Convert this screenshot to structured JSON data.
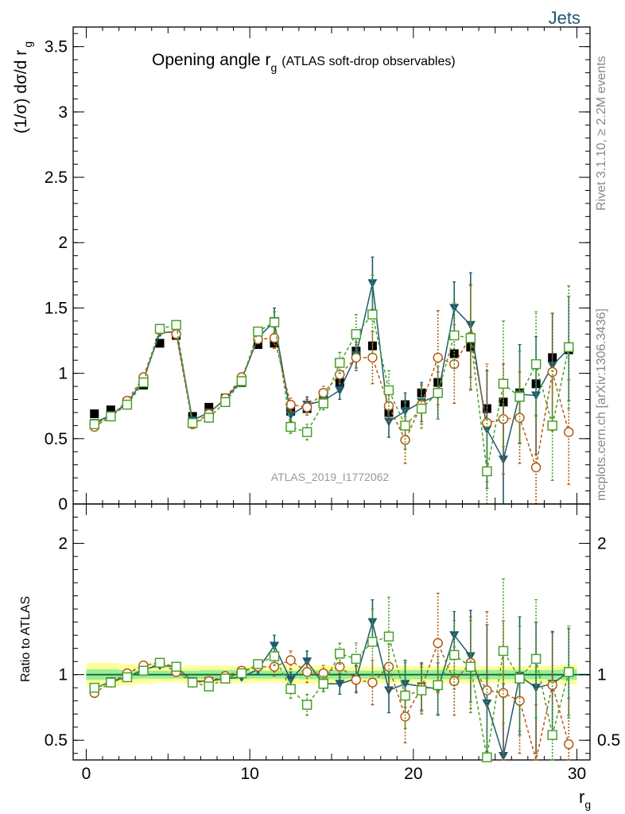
{
  "header": {
    "category": "Jets",
    "rivet_label": "Rivet 3.1.10, ≥ 2.2M events",
    "mcplots_label": "mcplots.cern.ch [arXiv:1306.3436]"
  },
  "colors": {
    "data": "#000000",
    "series_teal": "#1f5a70",
    "series_orange": "#b55a10",
    "series_green": "#4aa02a",
    "band_inner": "#99ee99",
    "band_outer": "#ffff99"
  },
  "chart_data": [
    {
      "type": "scatter",
      "title": "Opening angle r",
      "title_sub": "g",
      "title_suffix": "(ATLAS soft-drop observables)",
      "watermark": "ATLAS_2019_I1772062",
      "ylabel": "(1/σ) dσ/d r",
      "ylabel_sub": "g",
      "xlim": [
        -0.8,
        30.8
      ],
      "ylim": [
        0,
        3.65
      ],
      "yticks": [
        0,
        0.5,
        1,
        1.5,
        2,
        2.5,
        3,
        3.5
      ],
      "ytick_labels": [
        "0",
        "0.5",
        "1",
        "1.5",
        "2",
        "2.5",
        "3",
        "3.5"
      ],
      "x": [
        0.5,
        1.5,
        2.5,
        3.5,
        4.5,
        5.5,
        6.5,
        7.5,
        8.5,
        9.5,
        10.5,
        11.5,
        12.5,
        13.5,
        14.5,
        15.5,
        16.5,
        17.5,
        18.5,
        19.5,
        20.5,
        21.5,
        22.5,
        23.5,
        24.5,
        25.5,
        26.5,
        27.5,
        28.5,
        29.5
      ],
      "series": [
        {
          "name": "",
          "style": "data",
          "values": [
            0.69,
            0.72,
            0.78,
            0.91,
            1.23,
            1.29,
            0.67,
            0.74,
            0.81,
            0.93,
            1.22,
            1.23,
            0.71,
            0.73,
            0.84,
            0.93,
            1.17,
            1.21,
            0.7,
            0.76,
            0.85,
            0.93,
            1.15,
            1.2,
            0.73,
            0.78,
            0.85,
            0.92,
            1.12,
            1.18
          ]
        },
        {
          "name": "",
          "style": "teal",
          "values": [
            0.62,
            0.68,
            0.77,
            0.95,
            1.31,
            1.32,
            0.64,
            0.7,
            0.8,
            0.95,
            1.27,
            1.4,
            0.68,
            0.76,
            0.79,
            0.87,
            1.14,
            1.69,
            0.63,
            0.71,
            0.78,
            0.83,
            1.5,
            1.37,
            0.57,
            0.34,
            0.84,
            0.83,
            1.06,
            1.19
          ],
          "errors": [
            0.01,
            0.01,
            0.01,
            0.01,
            0.02,
            0.02,
            0.01,
            0.01,
            0.01,
            0.02,
            0.03,
            0.1,
            0.05,
            0.06,
            0.05,
            0.07,
            0.1,
            0.2,
            0.12,
            0.14,
            0.15,
            0.18,
            0.2,
            0.4,
            0.45,
            0.42,
            0.38,
            0.45,
            0.4,
            0.4
          ]
        },
        {
          "name": "",
          "style": "orange",
          "values": [
            0.59,
            0.67,
            0.79,
            0.97,
            1.33,
            1.3,
            0.61,
            0.69,
            0.81,
            0.97,
            1.26,
            1.27,
            0.76,
            0.74,
            0.85,
            0.99,
            1.12,
            1.12,
            0.75,
            0.49,
            0.76,
            1.12,
            1.07,
            1.28,
            0.62,
            0.65,
            0.66,
            0.28,
            1.01,
            0.55
          ],
          "errors": [
            0.01,
            0.01,
            0.01,
            0.02,
            0.02,
            0.02,
            0.01,
            0.01,
            0.01,
            0.02,
            0.03,
            0.08,
            0.05,
            0.06,
            0.05,
            0.07,
            0.1,
            0.2,
            0.12,
            0.18,
            0.15,
            0.36,
            0.3,
            0.4,
            0.45,
            0.42,
            0.35,
            0.4,
            0.45,
            0.4
          ]
        },
        {
          "name": "",
          "style": "green",
          "values": [
            0.61,
            0.67,
            0.76,
            0.93,
            1.34,
            1.37,
            0.62,
            0.66,
            0.78,
            0.94,
            1.32,
            1.39,
            0.59,
            0.55,
            0.77,
            1.08,
            1.3,
            1.45,
            0.87,
            0.6,
            0.73,
            0.85,
            1.29,
            1.27,
            0.25,
            0.92,
            0.82,
            1.07,
            0.6,
            1.2
          ],
          "errors": [
            0.01,
            0.01,
            0.01,
            0.02,
            0.02,
            0.02,
            0.01,
            0.01,
            0.01,
            0.02,
            0.03,
            0.08,
            0.05,
            0.06,
            0.05,
            0.08,
            0.15,
            0.3,
            0.15,
            0.18,
            0.15,
            0.2,
            0.25,
            0.4,
            0.4,
            0.48,
            0.35,
            0.4,
            0.42,
            0.47
          ]
        }
      ]
    },
    {
      "type": "scatter",
      "ylabel": "Ratio to ATLAS",
      "xlabel": "r",
      "xlabel_sub": "g",
      "xlim": [
        -0.8,
        30.8
      ],
      "ylim": [
        0.35,
        2.3
      ],
      "xticks": [
        0,
        10,
        20,
        30
      ],
      "xtick_labels": [
        "0",
        "10",
        "20",
        "30"
      ],
      "yticks": [
        0.5,
        1,
        2
      ],
      "ytick_labels": [
        "0.5",
        "1",
        "2"
      ],
      "x": [
        0.5,
        1.5,
        2.5,
        3.5,
        4.5,
        5.5,
        6.5,
        7.5,
        8.5,
        9.5,
        10.5,
        11.5,
        12.5,
        13.5,
        14.5,
        15.5,
        16.5,
        17.5,
        18.5,
        19.5,
        20.5,
        21.5,
        22.5,
        23.5,
        24.5,
        25.5,
        26.5,
        27.5,
        28.5,
        29.5
      ],
      "band_inner": [
        0.04,
        0.04,
        0.035,
        0.03,
        0.03,
        0.03,
        0.03,
        0.035,
        0.035,
        0.035,
        0.03,
        0.03,
        0.03,
        0.035,
        0.035,
        0.035,
        0.03,
        0.03,
        0.035,
        0.035,
        0.035,
        0.035,
        0.035,
        0.035,
        0.035,
        0.035,
        0.035,
        0.035,
        0.035,
        0.04
      ],
      "band_outer": [
        0.09,
        0.09,
        0.08,
        0.07,
        0.06,
        0.06,
        0.07,
        0.07,
        0.07,
        0.065,
        0.06,
        0.06,
        0.07,
        0.07,
        0.07,
        0.065,
        0.06,
        0.06,
        0.065,
        0.065,
        0.065,
        0.065,
        0.065,
        0.065,
        0.065,
        0.065,
        0.065,
        0.065,
        0.07,
        0.075
      ],
      "series": [
        {
          "name": "",
          "style": "teal",
          "values": [
            0.89,
            0.95,
            0.98,
            1.04,
            1.07,
            1.06,
            0.95,
            0.95,
            0.97,
            0.98,
            1.04,
            1.22,
            0.96,
            1.1,
            0.93,
            0.93,
            0.97,
            1.4,
            0.88,
            0.93,
            0.91,
            0.89,
            1.3,
            1.14,
            0.78,
            0.38,
            0.99,
            0.9,
            0.93,
            1.02
          ],
          "errors": [
            0.01,
            0.01,
            0.01,
            0.01,
            0.02,
            0.02,
            0.01,
            0.01,
            0.01,
            0.02,
            0.03,
            0.08,
            0.06,
            0.08,
            0.06,
            0.08,
            0.1,
            0.17,
            0.17,
            0.18,
            0.18,
            0.2,
            0.18,
            0.35,
            0.6,
            0.55,
            0.45,
            0.5,
            0.4,
            0.33
          ]
        },
        {
          "name": "",
          "style": "orange",
          "values": [
            0.86,
            0.94,
            1.01,
            1.07,
            1.09,
            1.02,
            0.94,
            0.95,
            0.99,
            1.03,
            1.06,
            1.06,
            1.11,
            1.02,
            1.01,
            1.06,
            0.96,
            0.94,
            1.06,
            0.68,
            0.9,
            1.24,
            0.95,
            1.09,
            0.88,
            0.86,
            0.8,
            0.32,
            0.92,
            0.47
          ],
          "errors": [
            0.01,
            0.01,
            0.01,
            0.02,
            0.02,
            0.02,
            0.01,
            0.01,
            0.01,
            0.02,
            0.03,
            0.07,
            0.07,
            0.08,
            0.06,
            0.08,
            0.1,
            0.17,
            0.17,
            0.2,
            0.18,
            0.38,
            0.26,
            0.35,
            0.6,
            0.55,
            0.4,
            0.45,
            0.4,
            0.35
          ]
        },
        {
          "name": "",
          "style": "green",
          "values": [
            0.9,
            0.94,
            0.98,
            1.03,
            1.09,
            1.06,
            0.94,
            0.91,
            0.97,
            1.01,
            1.08,
            1.14,
            0.89,
            0.77,
            0.93,
            1.16,
            1.12,
            1.25,
            1.29,
            0.84,
            0.88,
            0.92,
            1.15,
            1.06,
            0.37,
            1.18,
            0.97,
            1.12,
            0.54,
            1.02
          ],
          "errors": [
            0.01,
            0.01,
            0.01,
            0.02,
            0.02,
            0.02,
            0.01,
            0.01,
            0.01,
            0.02,
            0.03,
            0.07,
            0.07,
            0.08,
            0.06,
            0.08,
            0.12,
            0.25,
            0.3,
            0.25,
            0.18,
            0.22,
            0.26,
            0.35,
            0.6,
            0.55,
            0.4,
            0.45,
            0.4,
            0.35
          ]
        }
      ]
    }
  ]
}
